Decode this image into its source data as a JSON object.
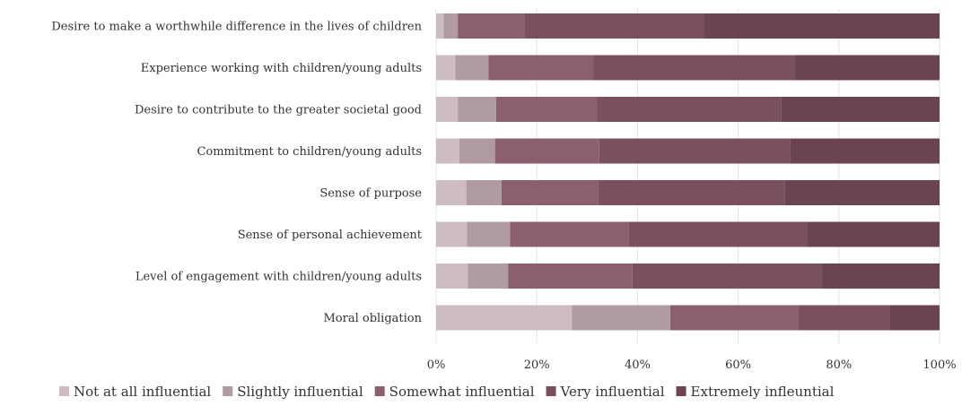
{
  "chart_data": {
    "type": "bar",
    "orientation": "horizontal",
    "stacked": true,
    "percent": true,
    "categories": [
      "Desire to make a worthwhile difference in the lives of children",
      "Experience working with children/young adults",
      "Desire to contribute to the greater societal good",
      "Commitment to children/young adults",
      "Sense of purpose",
      "Sense of personal achievement",
      "Level of engagement with children/young adults",
      "Moral obligation"
    ],
    "series": [
      {
        "name": "Not at all influential",
        "color": "#cdbcc3",
        "values": [
          1.5,
          3.8,
          4.3,
          4.6,
          6.0,
          6.1,
          6.3,
          27.0
        ]
      },
      {
        "name": "Slightly influential",
        "color": "#b09ba2",
        "values": [
          2.8,
          6.6,
          7.6,
          7.1,
          7.0,
          8.6,
          8.0,
          19.5
        ]
      },
      {
        "name": "Somewhat influential",
        "color": "#8c5f6f",
        "values": [
          13.2,
          20.8,
          20.1,
          20.7,
          19.2,
          23.6,
          24.7,
          25.5
        ]
      },
      {
        "name": "Very influential",
        "color": "#7a4f5f",
        "values": [
          35.7,
          40.0,
          36.5,
          38.0,
          37.0,
          35.4,
          37.5,
          18.2
        ]
      },
      {
        "name": "Extremely infleuntial",
        "color": "#6b4452",
        "values": [
          46.8,
          28.8,
          31.5,
          29.6,
          30.8,
          26.3,
          23.5,
          9.8
        ]
      }
    ],
    "xlim": [
      0,
      100
    ],
    "ticks": [
      "0%",
      "20%",
      "40%",
      "60%",
      "80%",
      "100%"
    ],
    "grid": true,
    "legend": "bottom"
  }
}
